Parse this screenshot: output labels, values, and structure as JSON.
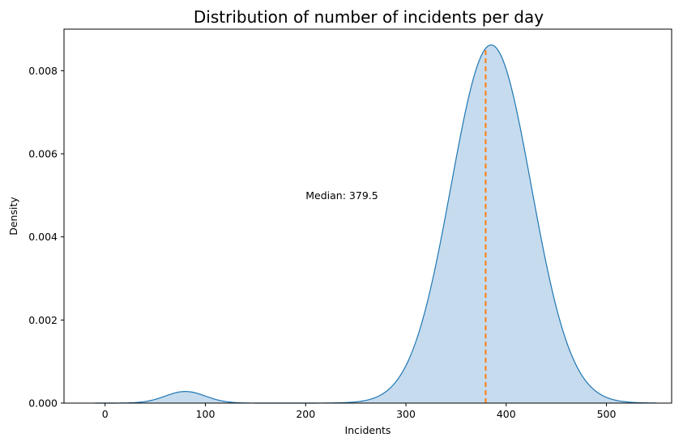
{
  "chart_data": {
    "type": "area",
    "title": "Distribution of number of incidents per day",
    "xlabel": "Incidents",
    "ylabel": "Density",
    "xlim": [
      -41,
      565
    ],
    "ylim": [
      0,
      0.009
    ],
    "xticks": [
      0,
      100,
      200,
      300,
      400,
      500
    ],
    "yticks": [
      0.0,
      0.002,
      0.004,
      0.006,
      0.008
    ],
    "ytick_labels": [
      "0.000",
      "0.002",
      "0.004",
      "0.006",
      "0.008"
    ],
    "grid": false,
    "series": [
      {
        "kind": "kde",
        "color": "#1f77b4",
        "fill_color": "#c6dbed",
        "components": [
          {
            "mean": 80,
            "sd": 20,
            "weight": 0.028
          },
          {
            "mean": 385,
            "sd": 40,
            "weight": 0.862
          }
        ],
        "x_range": [
          -10,
          550
        ]
      }
    ],
    "median": {
      "value": 379.5,
      "label": "Median: 379.5",
      "label_x": 200,
      "label_y": 0.005,
      "color": "#ff7f0e",
      "line_style": "dashed"
    }
  }
}
